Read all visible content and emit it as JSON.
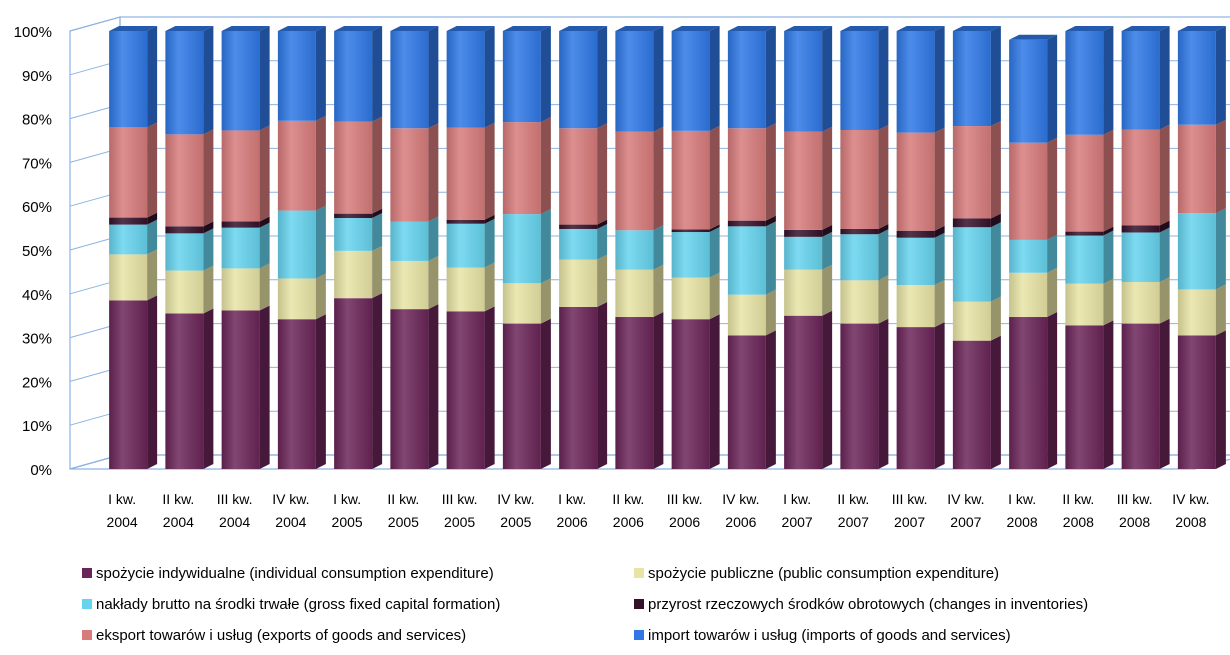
{
  "chart_data": {
    "type": "bar",
    "stacked": true,
    "percent": true,
    "categories": [
      [
        "I kw.",
        "2004"
      ],
      [
        "II kw.",
        "2004"
      ],
      [
        "III kw.",
        "2004"
      ],
      [
        "IV kw.",
        "2004"
      ],
      [
        "I kw.",
        "2005"
      ],
      [
        "II kw.",
        "2005"
      ],
      [
        "III kw.",
        "2005"
      ],
      [
        "IV kw.",
        "2005"
      ],
      [
        "I kw.",
        "2006"
      ],
      [
        "II kw.",
        "2006"
      ],
      [
        "III kw.",
        "2006"
      ],
      [
        "IV kw.",
        "2006"
      ],
      [
        "I kw.",
        "2007"
      ],
      [
        "II kw.",
        "2007"
      ],
      [
        "III kw.",
        "2007"
      ],
      [
        "IV kw.",
        "2007"
      ],
      [
        "I kw.",
        "2008"
      ],
      [
        "II kw.",
        "2008"
      ],
      [
        "III kw.",
        "2008"
      ],
      [
        "IV kw.",
        "2008"
      ]
    ],
    "yticks": [
      "0%",
      "10%",
      "20%",
      "30%",
      "40%",
      "50%",
      "60%",
      "70%",
      "80%",
      "90%",
      "100%"
    ],
    "ylim": [
      0,
      100
    ],
    "grid": true,
    "legend_position": "bottom",
    "series": [
      {
        "name": "spożycie indywidualne (individual consumption expenditure)",
        "color": "#6b2558",
        "values": [
          38.5,
          35.5,
          36.2,
          34.2,
          39.0,
          36.5,
          36.0,
          33.2,
          37.0,
          34.7,
          34.2,
          30.5,
          35.0,
          33.2,
          32.4,
          29.3,
          34.7,
          32.8,
          33.2,
          30.5
        ]
      },
      {
        "name": "spożycie publiczne (public consumption expenditure)",
        "color": "#e8e4a6",
        "values": [
          10.5,
          9.8,
          9.6,
          9.3,
          10.8,
          11.0,
          10.0,
          9.2,
          10.8,
          10.8,
          9.5,
          9.3,
          10.5,
          9.9,
          9.6,
          8.9,
          10.1,
          9.5,
          9.5,
          10.5
        ]
      },
      {
        "name": "nakłady brutto na środki trwałe (gross fixed capital formation)",
        "color": "#66d4ee",
        "values": [
          6.8,
          8.5,
          9.3,
          15.5,
          7.5,
          9.0,
          10.0,
          15.8,
          7.0,
          9.0,
          10.4,
          15.6,
          7.5,
          10.5,
          10.8,
          17.0,
          7.5,
          11.0,
          11.3,
          17.4
        ]
      },
      {
        "name": "przyrost rzeczowych środków obrotowych (changes in inventories)",
        "color": "#35112a",
        "values": [
          1.6,
          1.6,
          1.4,
          0.0,
          1.0,
          0.0,
          0.9,
          0.0,
          1.0,
          0.0,
          0.6,
          1.3,
          1.6,
          1.2,
          1.6,
          2.0,
          0.0,
          0.9,
          1.6,
          0.0
        ]
      },
      {
        "name": "eksport towarów i usług (exports of goods and services)",
        "color": "#d77b7b",
        "values": [
          20.6,
          21.0,
          20.8,
          20.5,
          21.0,
          21.3,
          21.0,
          21.0,
          22.0,
          22.5,
          22.5,
          21.1,
          22.4,
          22.6,
          22.4,
          21.1,
          22.2,
          22.1,
          21.9,
          20.2
        ]
      },
      {
        "name": "import towarów i usług (imports of goods and services)",
        "color": "#2f78e6",
        "values": [
          22.0,
          23.6,
          22.7,
          20.5,
          20.7,
          22.2,
          22.1,
          20.8,
          22.2,
          23.0,
          22.8,
          22.2,
          23.0,
          22.6,
          23.2,
          21.7,
          23.5,
          23.7,
          22.5,
          21.4
        ]
      }
    ]
  }
}
